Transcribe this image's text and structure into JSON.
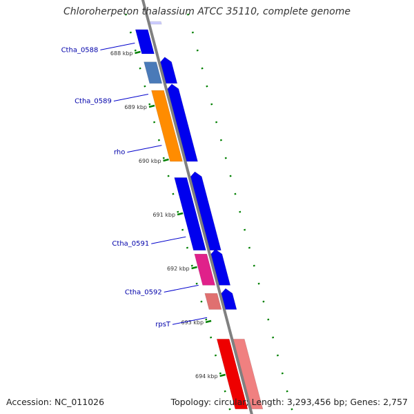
{
  "title": "Chloroherpeton thalassium ATCC 35110, complete genome",
  "footer": {
    "accession": "Accession: NC_011026",
    "topology": "Topology: circular; Length: 3,293,456 bp; Genes: 2,757"
  },
  "genome_view": {
    "kbp_ticks": [
      {
        "label": "688 kbp",
        "pos": 688.0
      },
      {
        "label": "689 kbp",
        "pos": 689.0
      },
      {
        "label": "690 kbp",
        "pos": 690.0
      },
      {
        "label": "691 kbp",
        "pos": 691.0
      },
      {
        "label": "692 kbp",
        "pos": 692.0
      },
      {
        "label": "693 kbp",
        "pos": 693.0
      },
      {
        "label": "694 kbp",
        "pos": 694.0
      }
    ],
    "gene_labels": [
      {
        "name": "Ctha_0588",
        "pos": 687.8
      },
      {
        "name": "Ctha_0589",
        "pos": 688.75
      },
      {
        "name": "rho",
        "pos": 689.7
      },
      {
        "name": "Ctha_0591",
        "pos": 691.4
      },
      {
        "name": "Ctha_0592",
        "pos": 692.3
      },
      {
        "name": "rpsT",
        "pos": 692.9
      }
    ],
    "features": [
      {
        "track": "gene",
        "start": 687.55,
        "end": 688.0,
        "color": "#0000ee"
      },
      {
        "track": "cds",
        "start": 687.4,
        "end": 687.45,
        "color": "#ccccff"
      },
      {
        "track": "gene",
        "start": 688.15,
        "end": 688.55,
        "color": "#4a7ab8"
      },
      {
        "track": "cds",
        "start": 688.15,
        "end": 688.55,
        "color": "#0000ee",
        "arrow": true
      },
      {
        "track": "gene",
        "start": 688.68,
        "end": 690.0,
        "color": "#ff8c00"
      },
      {
        "track": "cds",
        "start": 688.65,
        "end": 690.0,
        "color": "#0000ee",
        "arrow": true
      },
      {
        "track": "gene",
        "start": 690.3,
        "end": 691.65,
        "color": "#0000ee"
      },
      {
        "track": "cds",
        "start": 690.28,
        "end": 691.65,
        "color": "#0000ee",
        "arrow": true
      },
      {
        "track": "gene",
        "start": 691.72,
        "end": 692.3,
        "color": "#e0218a"
      },
      {
        "track": "cds",
        "start": 691.72,
        "end": 692.3,
        "color": "#0000ee",
        "arrow": true
      },
      {
        "track": "gene",
        "start": 692.45,
        "end": 692.75,
        "color": "#e07070"
      },
      {
        "track": "cds",
        "start": 692.45,
        "end": 692.75,
        "color": "#0000ee",
        "arrow": true
      },
      {
        "track": "gene",
        "start": 693.3,
        "end": 694.6,
        "color": "#ee0000"
      },
      {
        "track": "cds",
        "start": 693.3,
        "end": 694.6,
        "color": "#f08080"
      }
    ],
    "colors": {
      "backbone": "#808080",
      "gc_dash": "#008000",
      "gene_label": "#0000aa",
      "leader_line": "#0000cc"
    }
  }
}
